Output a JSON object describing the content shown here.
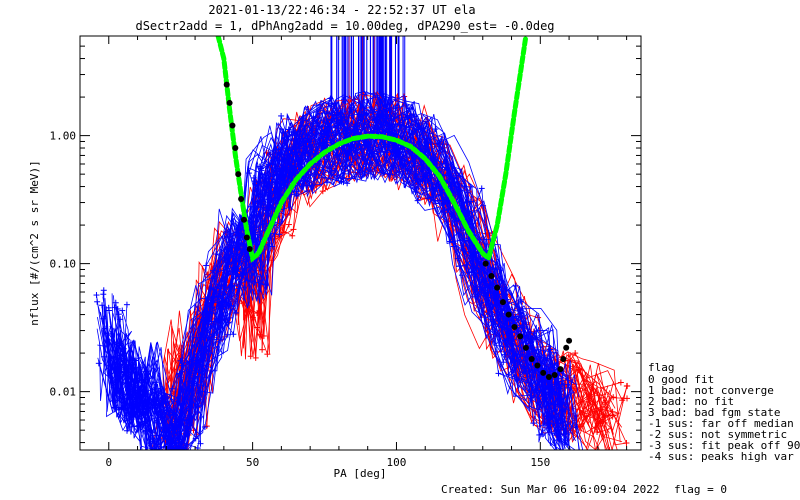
{
  "title_line1": "2021-01-13/22:46:34 - 22:52:37 UT ela",
  "title_line2": "dSectr2add = 1, dPhAng2add = 10.00deg, dPA290_est=  -0.0deg",
  "footer_created": "Created: Sun Mar 06 16:09:04 2022",
  "footer_flag": "flag = 0",
  "legend": {
    "heading": "flag",
    "items": [
      " 0 good fit",
      " 1 bad: not converge",
      " 2 bad: no fit",
      " 3 bad: bad fgm state",
      "-1 sus: far off median",
      "-2 sus: not symmetric",
      "-3 sus: fit peak off 90",
      "-4 sus: peaks high var"
    ]
  },
  "colors": {
    "red_series": "#ff0000",
    "blue_series": "#0000ff",
    "fit_curve": "#00ff00",
    "fit_points": "#000000",
    "vertical_lines_blue": "#0000ff",
    "vertical_lines_purple": "#800080"
  },
  "chart_data": {
    "type": "line",
    "xlabel": "PA [deg]",
    "ylabel": "nflux [#/(cm^2 s sr MeV)]",
    "xlim": [
      -10,
      185
    ],
    "ylim": [
      0.0035,
      6.0
    ],
    "yscale": "log",
    "x_ticks": [
      0,
      50,
      100,
      150
    ],
    "y_ticks": [
      0.01,
      0.1,
      1.0
    ],
    "y_tick_labels": [
      "0.01",
      "0.10",
      "1.00"
    ],
    "grid": false,
    "legend_position": "right-bottom outside plot",
    "series": [
      {
        "name": "red",
        "points": [
          [
            22,
            0.004
          ],
          [
            24,
            0.012
          ],
          [
            27,
            0.02
          ],
          [
            30,
            0.01
          ],
          [
            33,
            0.03
          ],
          [
            36,
            0.05
          ],
          [
            39,
            0.085
          ],
          [
            43,
            0.1
          ],
          [
            48,
            0.08
          ],
          [
            50,
            0.04
          ],
          [
            52,
            0.12
          ],
          [
            55,
            0.22
          ],
          [
            58,
            0.35
          ],
          [
            62,
            0.5
          ],
          [
            66,
            0.62
          ],
          [
            70,
            0.72
          ],
          [
            75,
            0.82
          ],
          [
            80,
            0.9
          ],
          [
            85,
            0.95
          ],
          [
            90,
            1.0
          ],
          [
            95,
            0.98
          ],
          [
            100,
            0.92
          ],
          [
            105,
            0.8
          ],
          [
            110,
            0.62
          ],
          [
            115,
            0.45
          ],
          [
            120,
            0.28
          ],
          [
            125,
            0.15
          ],
          [
            130,
            0.08
          ],
          [
            135,
            0.04
          ],
          [
            140,
            0.025
          ],
          [
            145,
            0.018
          ],
          [
            150,
            0.012
          ],
          [
            155,
            0.01
          ],
          [
            160,
            0.009
          ],
          [
            165,
            0.008
          ],
          [
            170,
            0.007
          ],
          [
            175,
            0.006
          ]
        ]
      },
      {
        "name": "blue",
        "points": [
          [
            1,
            0.03
          ],
          [
            3,
            0.014
          ],
          [
            5,
            0.012
          ],
          [
            8,
            0.011
          ],
          [
            10,
            0.009
          ],
          [
            13,
            0.012
          ],
          [
            16,
            0.006
          ],
          [
            20,
            0.005
          ],
          [
            24,
            0.004
          ],
          [
            28,
            0.008
          ],
          [
            32,
            0.02
          ],
          [
            36,
            0.04
          ],
          [
            40,
            0.06
          ],
          [
            45,
            0.12
          ],
          [
            50,
            0.1
          ],
          [
            53,
            0.3
          ],
          [
            57,
            0.45
          ],
          [
            61,
            0.58
          ],
          [
            65,
            0.68
          ],
          [
            70,
            0.78
          ],
          [
            75,
            0.86
          ],
          [
            80,
            0.93
          ],
          [
            85,
            0.97
          ],
          [
            90,
            1.0
          ],
          [
            95,
            0.99
          ],
          [
            100,
            0.94
          ],
          [
            105,
            0.84
          ],
          [
            110,
            0.68
          ],
          [
            115,
            0.5
          ],
          [
            120,
            0.32
          ],
          [
            125,
            0.18
          ],
          [
            130,
            0.08
          ],
          [
            135,
            0.05
          ],
          [
            140,
            0.03
          ],
          [
            145,
            0.02
          ],
          [
            150,
            0.015
          ],
          [
            153,
            0.01
          ],
          [
            156,
            0.008
          ],
          [
            159,
            0.006
          ]
        ]
      },
      {
        "name": "fit",
        "points": [
          [
            38,
            8.0
          ],
          [
            40,
            4.0
          ],
          [
            42,
            1.6
          ],
          [
            44,
            0.7
          ],
          [
            46,
            0.35
          ],
          [
            48,
            0.18
          ],
          [
            50,
            0.11
          ],
          [
            52,
            0.12
          ],
          [
            55,
            0.17
          ],
          [
            60,
            0.3
          ],
          [
            65,
            0.45
          ],
          [
            70,
            0.6
          ],
          [
            75,
            0.74
          ],
          [
            80,
            0.86
          ],
          [
            85,
            0.95
          ],
          [
            90,
            0.99
          ],
          [
            95,
            0.98
          ],
          [
            100,
            0.92
          ],
          [
            105,
            0.82
          ],
          [
            110,
            0.66
          ],
          [
            115,
            0.48
          ],
          [
            120,
            0.3
          ],
          [
            125,
            0.18
          ],
          [
            130,
            0.12
          ],
          [
            132,
            0.11
          ],
          [
            135,
            0.2
          ],
          [
            138,
            0.5
          ],
          [
            141,
            1.5
          ],
          [
            143,
            3.0
          ],
          [
            145,
            7.0
          ]
        ]
      },
      {
        "name": "fit_tails",
        "points": [
          [
            41,
            2.5
          ],
          [
            42,
            1.8
          ],
          [
            43,
            1.2
          ],
          [
            44,
            0.8
          ],
          [
            45,
            0.5
          ],
          [
            46,
            0.32
          ],
          [
            47,
            0.22
          ],
          [
            48,
            0.16
          ],
          [
            49,
            0.13
          ],
          [
            131,
            0.1
          ],
          [
            133,
            0.08
          ],
          [
            135,
            0.065
          ],
          [
            137,
            0.05
          ],
          [
            139,
            0.04
          ],
          [
            141,
            0.032
          ],
          [
            143,
            0.027
          ],
          [
            145,
            0.022
          ],
          [
            147,
            0.018
          ],
          [
            149,
            0.016
          ],
          [
            151,
            0.014
          ],
          [
            153,
            0.013
          ],
          [
            155,
            0.0135
          ],
          [
            157,
            0.015
          ],
          [
            158,
            0.018
          ],
          [
            159,
            0.022
          ],
          [
            160,
            0.025
          ]
        ]
      }
    ]
  }
}
